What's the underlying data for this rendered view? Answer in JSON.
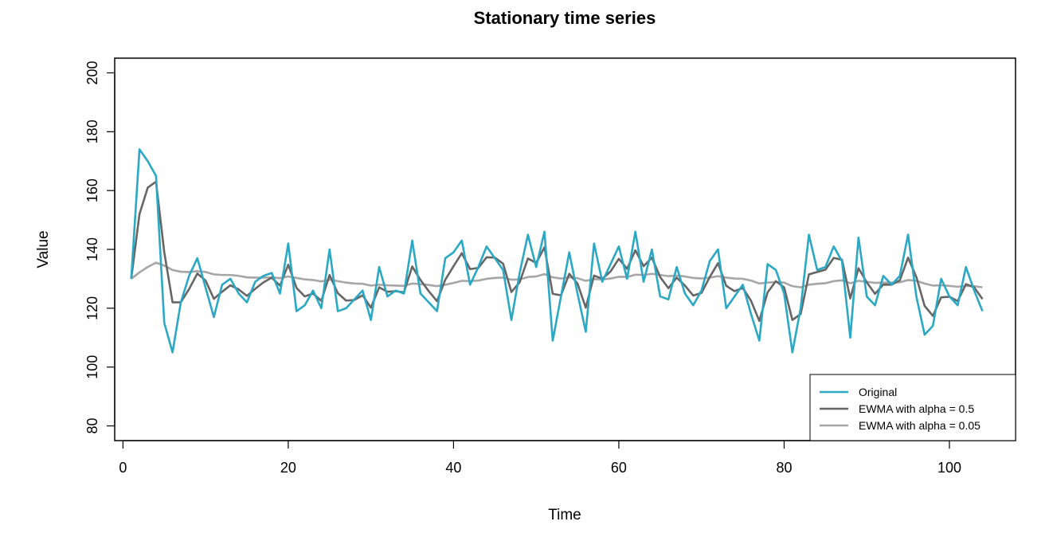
{
  "chart_data": {
    "type": "line",
    "title": "Stationary time series",
    "xlabel": "Time",
    "ylabel": "Value",
    "xlim": [
      -1,
      108
    ],
    "ylim": [
      75,
      205
    ],
    "x_ticks": [
      0,
      20,
      40,
      60,
      80,
      100
    ],
    "y_ticks": [
      80,
      100,
      120,
      140,
      160,
      180,
      200
    ],
    "grid": false,
    "legend_position": "bottom-right",
    "series": [
      {
        "name": "Original",
        "color": "#2aa8c4",
        "values": [
          130,
          174,
          170,
          165,
          115,
          105,
          122,
          131,
          137,
          127,
          117,
          128,
          130,
          125,
          122,
          129,
          131,
          132,
          125,
          142,
          119,
          121,
          126,
          120,
          140,
          119,
          120,
          123,
          126,
          116,
          134,
          124,
          126,
          125,
          143,
          125,
          122,
          119,
          137,
          139,
          143,
          128,
          134,
          141,
          137,
          133,
          116,
          132,
          145,
          134,
          146,
          109,
          124,
          139,
          125,
          112,
          142,
          129,
          135,
          141,
          130,
          146,
          129,
          140,
          124,
          123,
          134,
          125,
          121,
          126,
          136,
          140,
          120,
          124,
          128,
          118,
          109,
          135,
          133,
          125,
          105,
          120,
          145,
          133,
          134,
          141,
          136,
          110,
          144,
          124,
          121,
          131,
          128,
          131,
          145,
          124,
          111,
          114,
          130,
          124,
          121,
          134,
          126,
          119
        ]
      },
      {
        "name": "EWMA with alpha = 0.5",
        "color": "#666666",
        "values": [
          130,
          152,
          161,
          163,
          139,
          122,
          122,
          126.5,
          131.8,
          129.4,
          123.2,
          125.6,
          127.8,
          126.4,
          124.2,
          126.6,
          128.8,
          130.4,
          127.7,
          134.8,
          126.9,
          124,
          125,
          122.5,
          131.3,
          125.1,
          122.6,
          122.8,
          124.4,
          120.2,
          127.1,
          125.6,
          125.8,
          125.4,
          134.2,
          129.6,
          125.8,
          122.4,
          129.7,
          134.3,
          138.7,
          133.3,
          133.7,
          137.3,
          137.2,
          135.1,
          125.5,
          128.8,
          136.9,
          135.4,
          140.7,
          124.9,
          124.4,
          131.7,
          128.4,
          120.2,
          131.1,
          130,
          132.5,
          136.8,
          133.4,
          139.7,
          134.3,
          137.2,
          130.6,
          126.8,
          130.4,
          127.7,
          124.3,
          125.2,
          130.6,
          135.3,
          127.6,
          125.8,
          126.9,
          122.5,
          115.7,
          125.4,
          129.2,
          127.1,
          116,
          118,
          131.5,
          132.3,
          133.1,
          137.1,
          136.5,
          123.3,
          133.6,
          128.8,
          124.9,
          128,
          128,
          129.5,
          137.2,
          130.6,
          120.8,
          117.4,
          123.7,
          123.9,
          122.4,
          128.2,
          127.1,
          123.1
        ]
      },
      {
        "name": "EWMA with alpha = 0.05",
        "color": "#a6a6a6",
        "values": [
          130,
          132.2,
          134,
          135.5,
          134.5,
          133,
          132.4,
          132.3,
          132.6,
          132.3,
          131.5,
          131.3,
          131.3,
          131,
          130.5,
          130.4,
          130.4,
          130.5,
          130.2,
          130.8,
          130.3,
          129.8,
          129.6,
          129.1,
          129.7,
          129.2,
          128.7,
          128.4,
          128.3,
          127.7,
          128,
          127.8,
          127.7,
          127.6,
          128.4,
          128.2,
          127.9,
          127.5,
          128,
          128.6,
          129.3,
          129.2,
          129.4,
          130,
          130.3,
          130.4,
          129.7,
          129.8,
          130.6,
          130.8,
          131.6,
          130.5,
          130.1,
          130.5,
          130.2,
          129.3,
          129.9,
          129.8,
          130.1,
          130.7,
          130.6,
          131.4,
          131.3,
          131.7,
          131.3,
          130.9,
          131.1,
          130.8,
          130.3,
          130.1,
          130.4,
          130.9,
          130.4,
          130.1,
          130,
          129.4,
          128.4,
          128.7,
          128.9,
          128.7,
          127.5,
          127.1,
          128,
          128.3,
          128.5,
          129.2,
          129.5,
          128.5,
          129.3,
          129,
          128.6,
          128.7,
          128.7,
          128.8,
          129.6,
          129.3,
          128.4,
          127.7,
          127.8,
          127.6,
          127.3,
          127.6,
          127.5,
          127.1
        ]
      }
    ]
  }
}
